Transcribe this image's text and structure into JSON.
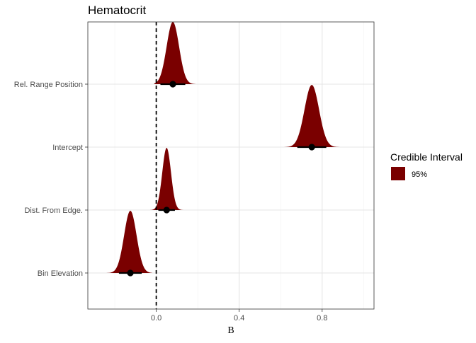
{
  "chart_data": {
    "type": "ridgeline",
    "title": "Hematocrit",
    "xlabel": "B",
    "ylabel": "",
    "xlim": [
      -0.33,
      1.05
    ],
    "x_ticks": [
      0.0,
      0.4,
      0.8
    ],
    "x_tick_labels": [
      "0.0",
      "0.4",
      "0.8"
    ],
    "reference_line": 0.0,
    "grid": true,
    "legend": {
      "title": "Credible Interval",
      "entries": [
        "95%"
      ],
      "placement": "right"
    },
    "colors": {
      "fill": "#7a0000",
      "point": "#000000",
      "grid_major": "#e5e5e5",
      "grid_minor": "#f2f2f2",
      "panel_border": "#333333"
    },
    "categories": [
      "Rel. Range Position",
      "Intercept",
      "Dist. From Edge.",
      "Bin Elevation"
    ],
    "series": [
      {
        "category": "Rel. Range Position",
        "median": 0.08,
        "sd": 0.03,
        "ci95": [
          0.02,
          0.14
        ],
        "tail_min": -0.01,
        "tail_max": 0.19
      },
      {
        "category": "Intercept",
        "median": 0.75,
        "sd": 0.035,
        "ci95": [
          0.68,
          0.82
        ],
        "tail_min": 0.6,
        "tail_max": 0.93
      },
      {
        "category": "Dist. From Edge.",
        "median": 0.05,
        "sd": 0.021,
        "ci95": [
          0.01,
          0.09
        ],
        "tail_min": -0.03,
        "tail_max": 0.13
      },
      {
        "category": "Bin Elevation",
        "median": -0.125,
        "sd": 0.03,
        "ci95": [
          -0.18,
          -0.07
        ],
        "tail_min": -0.24,
        "tail_max": -0.02
      }
    ]
  }
}
